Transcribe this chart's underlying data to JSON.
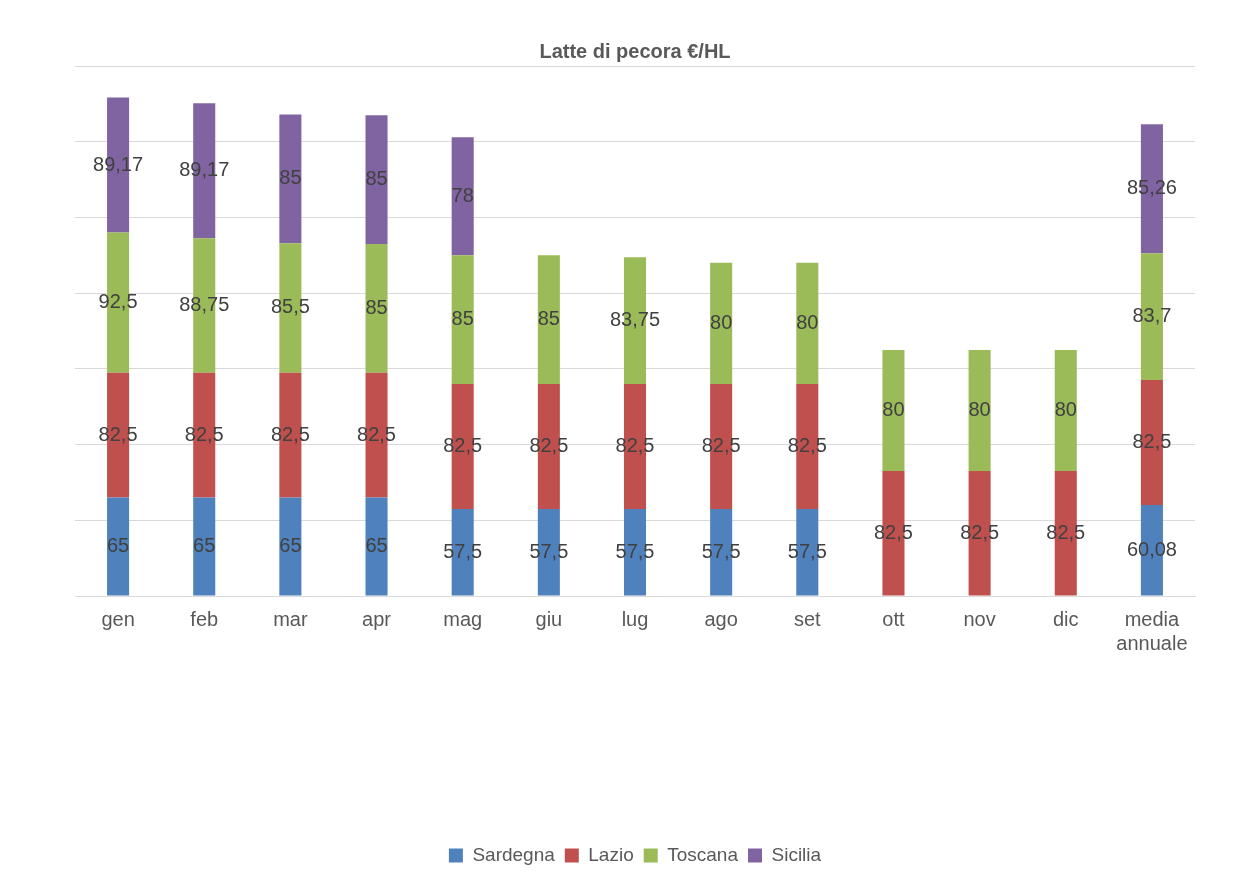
{
  "chart_data": {
    "type": "bar",
    "title": "Latte di pecora €/HL",
    "stacked": true,
    "grid": "y",
    "legend": "bottom",
    "tick_labels": "x",
    "categories": [
      "gen",
      "feb",
      "mar",
      "apr",
      "mag",
      "giu",
      "lug",
      "ago",
      "set",
      "ott",
      "nov",
      "dic",
      "media annuale"
    ],
    "ylim": [
      0,
      350
    ],
    "yticks": [
      {
        "value": 0,
        "label": null
      },
      {
        "value": 50,
        "label": null
      },
      {
        "value": 100,
        "label": null
      },
      {
        "value": 150,
        "label": null
      },
      {
        "value": 200,
        "label": null
      },
      {
        "value": 250,
        "label": null
      },
      {
        "value": 300,
        "label": null
      },
      {
        "value": 350,
        "label": null
      }
    ],
    "series": [
      {
        "name": "Sardegna",
        "color": "#4f81bd",
        "values": [
          65,
          65,
          65,
          65,
          57.5,
          57.5,
          57.5,
          57.5,
          57.5,
          null,
          null,
          null,
          60.08
        ],
        "value_labels": [
          "65",
          "65",
          "65",
          "65",
          "57,5",
          "57,5",
          "57,5",
          "57,5",
          "57,5",
          null,
          null,
          null,
          "60,08"
        ]
      },
      {
        "name": "Lazio",
        "color": "#c0504d",
        "values": [
          82.5,
          82.5,
          82.5,
          82.5,
          82.5,
          82.5,
          82.5,
          82.5,
          82.5,
          82.5,
          82.5,
          82.5,
          82.5
        ],
        "value_labels": [
          "82,5",
          "82,5",
          "82,5",
          "82,5",
          "82,5",
          "82,5",
          "82,5",
          "82,5",
          "82,5",
          "82,5",
          "82,5",
          "82,5",
          "82,5"
        ]
      },
      {
        "name": "Toscana",
        "color": "#9bbb59",
        "values": [
          92.5,
          88.75,
          85.5,
          85,
          85,
          85,
          83.75,
          80,
          80,
          80,
          80,
          80,
          83.7
        ],
        "value_labels": [
          "92,5",
          "88,75",
          "85,5",
          "85",
          "85",
          "85",
          "83,75",
          "80",
          "80",
          "80",
          "80",
          "80",
          "83,7"
        ]
      },
      {
        "name": "Sicilia",
        "color": "#8064a2",
        "values": [
          89.17,
          89.17,
          85,
          85,
          78,
          null,
          null,
          null,
          null,
          null,
          null,
          null,
          85.26
        ],
        "value_labels": [
          "89,17",
          "89,17",
          "85",
          "85",
          "78",
          null,
          null,
          null,
          null,
          null,
          null,
          null,
          "85,26"
        ]
      }
    ]
  }
}
